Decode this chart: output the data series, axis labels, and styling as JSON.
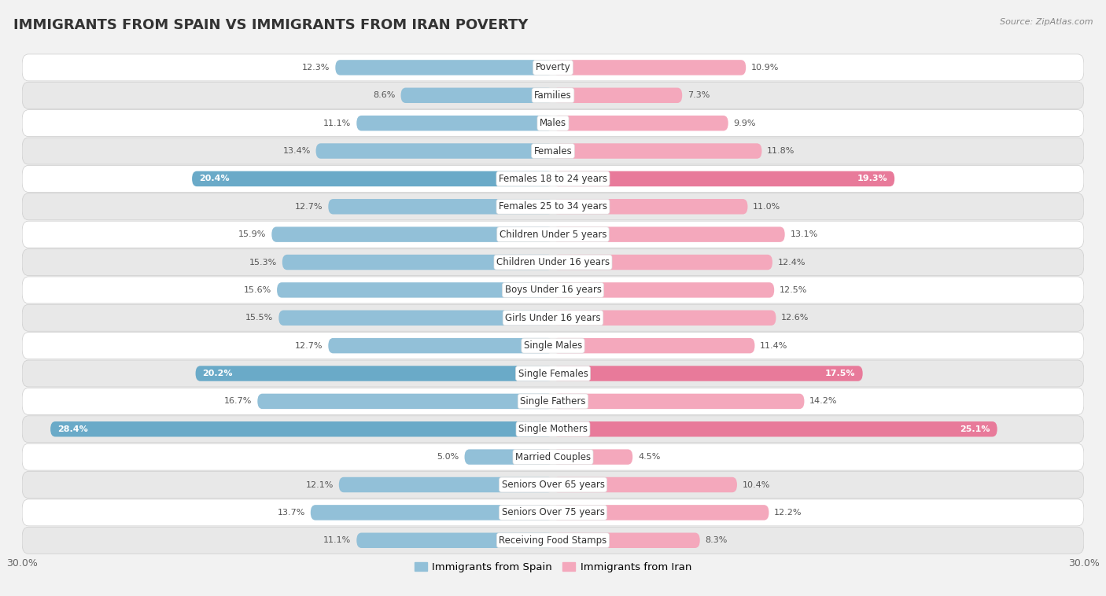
{
  "title": "IMMIGRANTS FROM SPAIN VS IMMIGRANTS FROM IRAN POVERTY",
  "source": "Source: ZipAtlas.com",
  "categories": [
    "Poverty",
    "Families",
    "Males",
    "Females",
    "Females 18 to 24 years",
    "Females 25 to 34 years",
    "Children Under 5 years",
    "Children Under 16 years",
    "Boys Under 16 years",
    "Girls Under 16 years",
    "Single Males",
    "Single Females",
    "Single Fathers",
    "Single Mothers",
    "Married Couples",
    "Seniors Over 65 years",
    "Seniors Over 75 years",
    "Receiving Food Stamps"
  ],
  "spain_values": [
    12.3,
    8.6,
    11.1,
    13.4,
    20.4,
    12.7,
    15.9,
    15.3,
    15.6,
    15.5,
    12.7,
    20.2,
    16.7,
    28.4,
    5.0,
    12.1,
    13.7,
    11.1
  ],
  "iran_values": [
    10.9,
    7.3,
    9.9,
    11.8,
    19.3,
    11.0,
    13.1,
    12.4,
    12.5,
    12.6,
    11.4,
    17.5,
    14.2,
    25.1,
    4.5,
    10.4,
    12.2,
    8.3
  ],
  "spain_color": "#92c0d8",
  "iran_color": "#f4a8bc",
  "spain_bold_indices": [
    4,
    11,
    13
  ],
  "iran_bold_indices": [
    4,
    11,
    13
  ],
  "spain_bold_color": "#6aaac8",
  "iran_bold_color": "#e87a9a",
  "max_val": 30.0,
  "bar_height": 0.55,
  "background_color": "#f2f2f2",
  "row_light_color": "#ffffff",
  "row_dark_color": "#e8e8e8",
  "title_fontsize": 13,
  "label_fontsize": 8.5,
  "value_fontsize": 8,
  "legend_label_spain": "Immigrants from Spain",
  "legend_label_iran": "Immigrants from Iran"
}
